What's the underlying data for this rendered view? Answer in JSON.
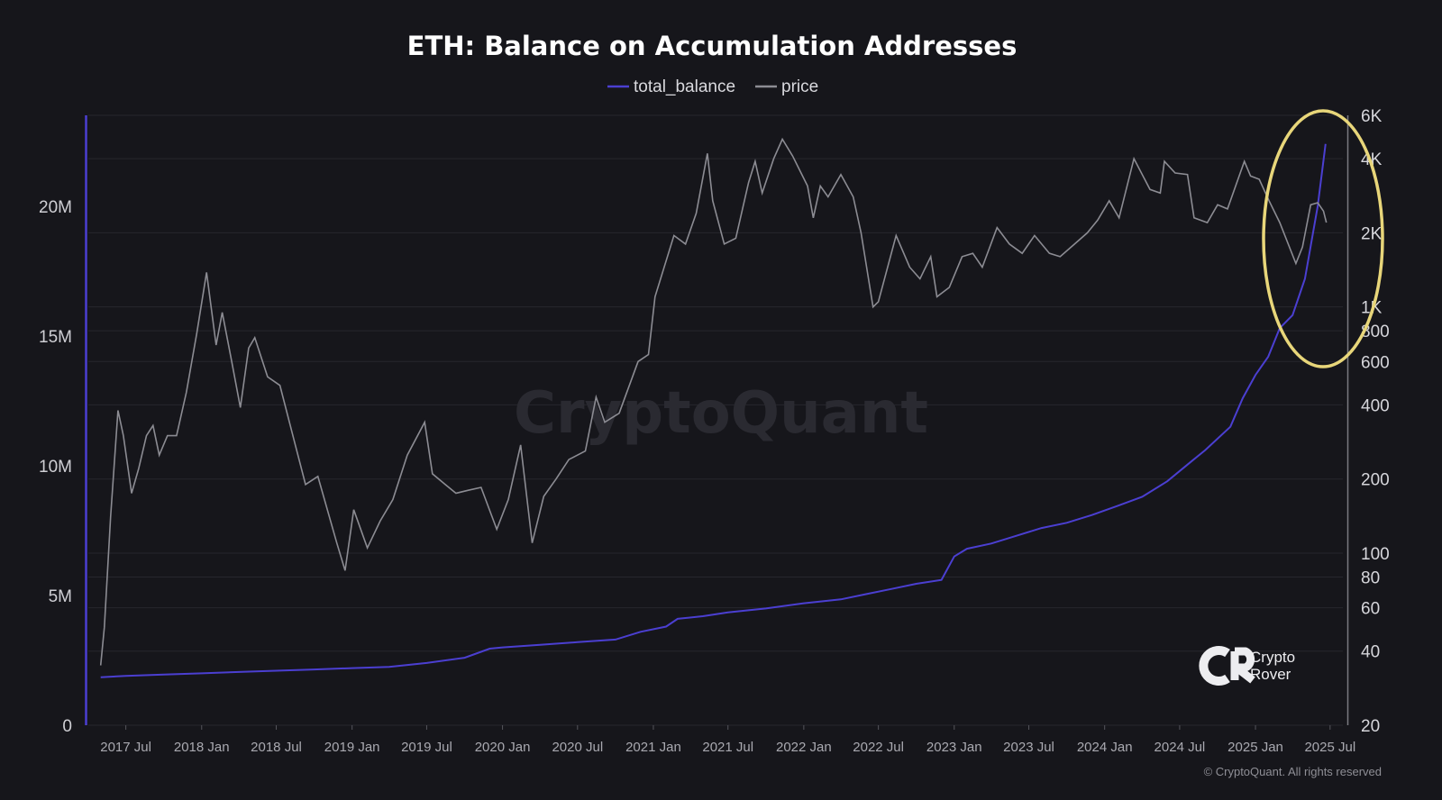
{
  "chart_data": {
    "type": "line",
    "title": "ETH: Balance on Accumulation Addresses",
    "legend": {
      "placement": "top-center",
      "entries": [
        "total_balance",
        "price"
      ]
    },
    "x_ticks": [
      "2017 Jul",
      "2018 Jan",
      "2018 Jul",
      "2019 Jan",
      "2019 Jul",
      "2020 Jan",
      "2020 Jul",
      "2021 Jan",
      "2021 Jul",
      "2022 Jan",
      "2022 Jul",
      "2023 Jan",
      "2023 Jul",
      "2024 Jan",
      "2024 Jul",
      "2025 Jan",
      "2025 Jul"
    ],
    "x_range": [
      "2017-04-01",
      "2025-08-01"
    ],
    "left_axis": {
      "ticks": [
        "0",
        "5M",
        "10M",
        "15M",
        "20M"
      ],
      "tick_values": [
        0,
        5000000,
        10000000,
        15000000,
        20000000
      ],
      "range": [
        0,
        23500000
      ]
    },
    "right_axis": {
      "scale": "log",
      "ticks": [
        "6K",
        "4K",
        "2K",
        "1K",
        "800",
        "600",
        "400",
        "200",
        "100",
        "80",
        "60",
        "40",
        "20"
      ],
      "tick_values": [
        6000,
        4000,
        2000,
        1000,
        800,
        600,
        400,
        200,
        100,
        80,
        60,
        40,
        20
      ],
      "range": [
        20,
        6000
      ]
    },
    "grid": true,
    "series": [
      {
        "name": "total_balance",
        "axis": "left",
        "color": "#4b3fd1",
        "points": [
          [
            "2017-05-01",
            1850000
          ],
          [
            "2017-07-01",
            1900000
          ],
          [
            "2017-10-01",
            1950000
          ],
          [
            "2018-01-01",
            2000000
          ],
          [
            "2018-04-01",
            2050000
          ],
          [
            "2018-07-01",
            2100000
          ],
          [
            "2018-10-01",
            2150000
          ],
          [
            "2019-01-01",
            2200000
          ],
          [
            "2019-04-01",
            2250000
          ],
          [
            "2019-07-01",
            2400000
          ],
          [
            "2019-10-01",
            2600000
          ],
          [
            "2019-12-01",
            2950000
          ],
          [
            "2020-01-01",
            3000000
          ],
          [
            "2020-04-01",
            3100000
          ],
          [
            "2020-07-01",
            3200000
          ],
          [
            "2020-10-01",
            3300000
          ],
          [
            "2020-12-01",
            3600000
          ],
          [
            "2021-02-01",
            3800000
          ],
          [
            "2021-03-01",
            4100000
          ],
          [
            "2021-05-01",
            4200000
          ],
          [
            "2021-07-01",
            4350000
          ],
          [
            "2021-10-01",
            4500000
          ],
          [
            "2022-01-01",
            4700000
          ],
          [
            "2022-04-01",
            4850000
          ],
          [
            "2022-06-01",
            5050000
          ],
          [
            "2022-08-01",
            5250000
          ],
          [
            "2022-10-01",
            5450000
          ],
          [
            "2022-12-01",
            5600000
          ],
          [
            "2023-01-01",
            6500000
          ],
          [
            "2023-02-01",
            6800000
          ],
          [
            "2023-04-01",
            7000000
          ],
          [
            "2023-06-01",
            7300000
          ],
          [
            "2023-08-01",
            7600000
          ],
          [
            "2023-10-01",
            7800000
          ],
          [
            "2023-12-01",
            8100000
          ],
          [
            "2024-02-01",
            8450000
          ],
          [
            "2024-04-01",
            8800000
          ],
          [
            "2024-06-01",
            9400000
          ],
          [
            "2024-08-01",
            10200000
          ],
          [
            "2024-09-01",
            10600000
          ],
          [
            "2024-11-01",
            11500000
          ],
          [
            "2024-12-01",
            12600000
          ],
          [
            "2025-01-01",
            13500000
          ],
          [
            "2025-02-01",
            14200000
          ],
          [
            "2025-03-01",
            15300000
          ],
          [
            "2025-04-01",
            15800000
          ],
          [
            "2025-05-01",
            17200000
          ],
          [
            "2025-06-01",
            20000000
          ],
          [
            "2025-06-20",
            22400000
          ]
        ]
      },
      {
        "name": "price",
        "axis": "right",
        "color": "#8c8c93",
        "points": [
          [
            "2017-05-01",
            35
          ],
          [
            "2017-05-10",
            50
          ],
          [
            "2017-05-25",
            140
          ],
          [
            "2017-06-12",
            380
          ],
          [
            "2017-06-25",
            300
          ],
          [
            "2017-07-15",
            175
          ],
          [
            "2017-08-01",
            220
          ],
          [
            "2017-08-20",
            300
          ],
          [
            "2017-09-05",
            330
          ],
          [
            "2017-09-20",
            250
          ],
          [
            "2017-10-10",
            300
          ],
          [
            "2017-11-01",
            300
          ],
          [
            "2017-11-25",
            450
          ],
          [
            "2017-12-20",
            780
          ],
          [
            "2018-01-13",
            1380
          ],
          [
            "2018-02-05",
            700
          ],
          [
            "2018-02-20",
            950
          ],
          [
            "2018-03-15",
            600
          ],
          [
            "2018-04-05",
            390
          ],
          [
            "2018-04-25",
            680
          ],
          [
            "2018-05-10",
            750
          ],
          [
            "2018-06-10",
            520
          ],
          [
            "2018-07-10",
            480
          ],
          [
            "2018-08-15",
            280
          ],
          [
            "2018-09-10",
            190
          ],
          [
            "2018-10-10",
            205
          ],
          [
            "2018-11-25",
            110
          ],
          [
            "2018-12-15",
            85
          ],
          [
            "2019-01-05",
            150
          ],
          [
            "2019-02-07",
            105
          ],
          [
            "2019-03-10",
            135
          ],
          [
            "2019-04-10",
            165
          ],
          [
            "2019-05-15",
            250
          ],
          [
            "2019-06-26",
            340
          ],
          [
            "2019-07-15",
            210
          ],
          [
            "2019-08-15",
            190
          ],
          [
            "2019-09-10",
            175
          ],
          [
            "2019-10-10",
            180
          ],
          [
            "2019-11-10",
            185
          ],
          [
            "2019-12-18",
            125
          ],
          [
            "2020-01-15",
            165
          ],
          [
            "2020-02-14",
            275
          ],
          [
            "2020-03-13",
            110
          ],
          [
            "2020-04-10",
            170
          ],
          [
            "2020-05-10",
            200
          ],
          [
            "2020-06-10",
            240
          ],
          [
            "2020-07-20",
            260
          ],
          [
            "2020-08-15",
            430
          ],
          [
            "2020-09-05",
            340
          ],
          [
            "2020-10-10",
            370
          ],
          [
            "2020-11-25",
            600
          ],
          [
            "2020-12-20",
            640
          ],
          [
            "2021-01-05",
            1100
          ],
          [
            "2021-02-20",
            1950
          ],
          [
            "2021-03-20",
            1800
          ],
          [
            "2021-04-15",
            2400
          ],
          [
            "2021-05-12",
            4200
          ],
          [
            "2021-05-25",
            2700
          ],
          [
            "2021-06-22",
            1800
          ],
          [
            "2021-07-20",
            1900
          ],
          [
            "2021-08-20",
            3200
          ],
          [
            "2021-09-05",
            3900
          ],
          [
            "2021-09-22",
            2900
          ],
          [
            "2021-10-20",
            4000
          ],
          [
            "2021-11-10",
            4800
          ],
          [
            "2021-12-05",
            4100
          ],
          [
            "2022-01-10",
            3100
          ],
          [
            "2022-01-24",
            2300
          ],
          [
            "2022-02-10",
            3100
          ],
          [
            "2022-03-01",
            2800
          ],
          [
            "2022-04-01",
            3450
          ],
          [
            "2022-05-01",
            2800
          ],
          [
            "2022-05-20",
            2000
          ],
          [
            "2022-06-18",
            1000
          ],
          [
            "2022-07-01",
            1050
          ],
          [
            "2022-08-13",
            1950
          ],
          [
            "2022-09-15",
            1450
          ],
          [
            "2022-10-10",
            1300
          ],
          [
            "2022-11-05",
            1600
          ],
          [
            "2022-11-20",
            1100
          ],
          [
            "2022-12-20",
            1200
          ],
          [
            "2023-01-20",
            1600
          ],
          [
            "2023-02-15",
            1650
          ],
          [
            "2023-03-10",
            1450
          ],
          [
            "2023-04-15",
            2100
          ],
          [
            "2023-05-15",
            1800
          ],
          [
            "2023-06-15",
            1650
          ],
          [
            "2023-07-15",
            1950
          ],
          [
            "2023-08-20",
            1650
          ],
          [
            "2023-09-15",
            1600
          ],
          [
            "2023-10-20",
            1800
          ],
          [
            "2023-11-20",
            2000
          ],
          [
            "2023-12-15",
            2250
          ],
          [
            "2024-01-12",
            2700
          ],
          [
            "2024-02-05",
            2300
          ],
          [
            "2024-03-12",
            4000
          ],
          [
            "2024-04-20",
            3000
          ],
          [
            "2024-05-15",
            2900
          ],
          [
            "2024-05-25",
            3900
          ],
          [
            "2024-06-20",
            3500
          ],
          [
            "2024-07-20",
            3450
          ],
          [
            "2024-08-05",
            2300
          ],
          [
            "2024-09-06",
            2200
          ],
          [
            "2024-10-01",
            2600
          ],
          [
            "2024-10-25",
            2500
          ],
          [
            "2024-12-05",
            3900
          ],
          [
            "2024-12-20",
            3400
          ],
          [
            "2025-01-10",
            3300
          ],
          [
            "2025-02-03",
            2700
          ],
          [
            "2025-03-01",
            2200
          ],
          [
            "2025-04-09",
            1500
          ],
          [
            "2025-04-25",
            1750
          ],
          [
            "2025-05-15",
            2600
          ],
          [
            "2025-06-01",
            2650
          ],
          [
            "2025-06-15",
            2450
          ],
          [
            "2025-06-22",
            2200
          ]
        ]
      }
    ],
    "annotations": [
      {
        "type": "ellipse",
        "color": "#e8d67a",
        "x_range": [
          "2025-01-01",
          "2025-08-01"
        ]
      }
    ],
    "watermark": "CryptoQuant",
    "credits": {
      "logo_line1": "Crypto",
      "logo_line2": "Rover",
      "copyright": "© CryptoQuant. All rights reserved"
    }
  }
}
